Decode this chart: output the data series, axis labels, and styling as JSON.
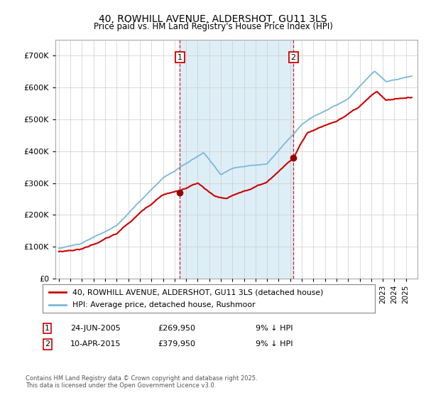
{
  "title": "40, ROWHILL AVENUE, ALDERSHOT, GU11 3LS",
  "subtitle": "Price paid vs. HM Land Registry's House Price Index (HPI)",
  "ylim": [
    0,
    750000
  ],
  "yticks": [
    0,
    100000,
    200000,
    300000,
    400000,
    500000,
    600000,
    700000
  ],
  "hpi_color": "#7ab8d9",
  "hpi_shade_color": "#deeef7",
  "price_color": "#cc0000",
  "marker_color": "#990000",
  "vline_color": "#cc0000",
  "grid_color": "#cccccc",
  "background_color": "#ffffff",
  "legend_label_price": "40, ROWHILL AVENUE, ALDERSHOT, GU11 3LS (detached house)",
  "legend_label_hpi": "HPI: Average price, detached house, Rushmoor",
  "transaction1_date": "24-JUN-2005",
  "transaction1_price": "£269,950",
  "transaction1_pct": "9% ↓ HPI",
  "transaction2_date": "10-APR-2015",
  "transaction2_price": "£379,950",
  "transaction2_pct": "9% ↓ HPI",
  "footnote": "Contains HM Land Registry data © Crown copyright and database right 2025.\nThis data is licensed under the Open Government Licence v3.0.",
  "x_start_year": 1995,
  "x_end_year": 2025,
  "t1_year": 2005.46,
  "t2_year": 2015.27,
  "t1_price": 269950,
  "t2_price": 379950
}
